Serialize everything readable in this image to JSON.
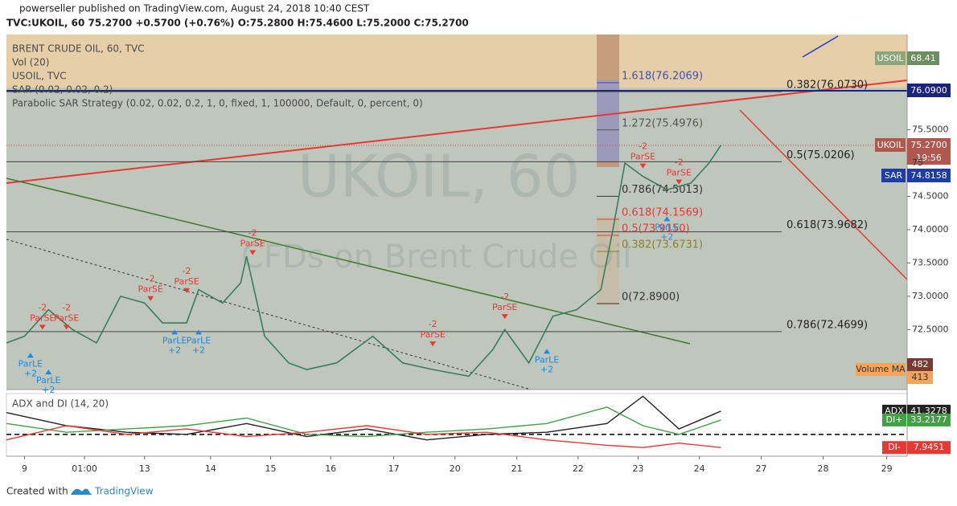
{
  "header": {
    "publisher": "powerseller published on TradingView.com, August 24, 2018 10:40 CEST",
    "ticker": "TVC:UKOIL, 60  75.2700  +0.5700 (+0.76%)  O:75.2800  H:75.4600  L:75.2000  C:75.2700"
  },
  "legend": [
    "BRENT CRUDE OIL, 60, TVC",
    "Vol (20)",
    "USOIL, TVC",
    "SAR (0.02, 0.02, 0.2)",
    "Parabolic SAR Strategy (0.02, 0.02, 0.2, 1, 0, fixed, 1, 100000, Default, 0, percent, 0)"
  ],
  "watermark": [
    "UKOIL, 60",
    "CFDs on Brent Crude Oil"
  ],
  "badges": {
    "usoil_name": "USOIL",
    "usoil": "68.41",
    "level": "76.0900",
    "ukoil_name": "UKOIL",
    "ukoil": "75.2700",
    "timer": "19:56",
    "sar_name": "SAR",
    "sar": "74.8158",
    "vma_name": "Volume MA",
    "vma": "482",
    "vol": "413"
  },
  "chart_data": {
    "type": "line",
    "xlim": [
      0,
      150
    ],
    "xticks": [
      {
        "value": 3,
        "label": "9"
      },
      {
        "value": 13,
        "label": "01:00"
      },
      {
        "value": 23,
        "label": "13"
      },
      {
        "value": 34,
        "label": "14"
      },
      {
        "value": 44,
        "label": "15"
      },
      {
        "value": 54,
        "label": "16"
      },
      {
        "value": 64.5,
        "label": "17"
      },
      {
        "value": 74.7,
        "label": "20"
      },
      {
        "value": 85,
        "label": "21"
      },
      {
        "value": 95.2,
        "label": "22"
      },
      {
        "value": 105.2,
        "label": "23"
      },
      {
        "value": 115.4,
        "label": "24"
      },
      {
        "value": 125.7,
        "label": "27"
      },
      {
        "value": 136,
        "label": "28"
      },
      {
        "value": 146.6,
        "label": "29"
      }
    ],
    "ylim": [
      71.6,
      76.93
    ],
    "yticks": [
      {
        "value": 72.5,
        "label": "72.5000"
      },
      {
        "value": 73,
        "label": "73.0000"
      },
      {
        "value": 73.5,
        "label": "73.5000"
      },
      {
        "value": 74,
        "label": "74.0000"
      },
      {
        "value": 74.5,
        "label": "74.5000"
      },
      {
        "value": 75,
        "label": "75"
      },
      {
        "value": 75.5,
        "label": "75.5000"
      }
    ],
    "series": [
      {
        "name": "UKOIL",
        "color": "#3a7d5a",
        "x": [
          0,
          3,
          7,
          11,
          15,
          19,
          23,
          26,
          30,
          32,
          36,
          39,
          40,
          43,
          47,
          50,
          55,
          61,
          66,
          71,
          77,
          81,
          83,
          87,
          91,
          95,
          99,
          101,
          103,
          106,
          110,
          114,
          117,
          119
        ],
        "values": [
          72.3,
          72.4,
          72.8,
          72.5,
          72.3,
          73.0,
          72.9,
          72.6,
          72.6,
          73.1,
          72.9,
          73.2,
          73.6,
          72.4,
          72.0,
          71.9,
          72.0,
          72.4,
          72.0,
          71.9,
          71.8,
          72.2,
          72.5,
          72.0,
          72.7,
          72.8,
          73.1,
          74.0,
          75.0,
          74.8,
          74.6,
          74.7,
          75.0,
          75.27
        ]
      }
    ],
    "fib_right": [
      {
        "label": "0.382(76.0730)",
        "value": 76.073
      },
      {
        "label": "0.5(75.0206)",
        "value": 75.0206
      },
      {
        "label": "0.618(73.9682)",
        "value": 73.9682
      },
      {
        "label": "0.786(72.4699)",
        "value": 72.4699
      }
    ],
    "fib_left": [
      {
        "label": "1.618(76.2069)",
        "value": 76.2069,
        "color": "#3f51b5"
      },
      {
        "label": "1.272(75.4976)",
        "value": 75.4976,
        "color": "#555555"
      },
      {
        "label": "0.786(74.5013)",
        "value": 74.5013,
        "color": "#333333"
      },
      {
        "label": "0.618(74.1569)",
        "value": 74.1569,
        "color": "#e53935"
      },
      {
        "label": "0.5(73.9150)",
        "value": 73.915,
        "color": "#e53935"
      },
      {
        "label": "0.382(73.6731)",
        "value": 73.6731,
        "color": "#8d7f2a"
      },
      {
        "label": "0(72.8900)",
        "value": 72.89,
        "color": "#333333"
      }
    ],
    "signals": [
      {
        "label": "ParSE",
        "qty": "-2",
        "x": 6,
        "value": 72.5
      },
      {
        "label": "ParSE",
        "qty": "-2",
        "x": 10,
        "value": 72.5
      },
      {
        "label": "ParLE",
        "qty": "+2",
        "x": 4,
        "value": 72.15
      },
      {
        "label": "ParLE",
        "qty": "+2",
        "x": 7,
        "value": 71.9
      },
      {
        "label": "ParSE",
        "qty": "-2",
        "x": 24,
        "value": 72.93
      },
      {
        "label": "ParSE",
        "qty": "-2",
        "x": 30,
        "value": 73.05
      },
      {
        "label": "ParLE",
        "qty": "+2",
        "x": 28,
        "value": 72.5
      },
      {
        "label": "ParLE",
        "qty": "+2",
        "x": 32,
        "value": 72.5
      },
      {
        "label": "ParSE",
        "qty": "-2",
        "x": 41,
        "value": 73.62
      },
      {
        "label": "ParSE",
        "qty": "-2",
        "x": 71,
        "value": 72.25
      },
      {
        "label": "ParSE",
        "qty": "-2",
        "x": 83,
        "value": 72.66
      },
      {
        "label": "ParLE",
        "qty": "+2",
        "x": 90,
        "value": 72.21
      },
      {
        "label": "ParSE",
        "qty": "-2",
        "x": 106,
        "value": 74.92
      },
      {
        "label": "ParSE",
        "qty": "-2",
        "x": 112,
        "value": 74.68
      },
      {
        "label": "ParLE",
        "qty": "+2",
        "x": 110,
        "value": 74.2
      }
    ],
    "indicator": {
      "title": "ADX and DI (14, 20)",
      "ylim": [
        0,
        56
      ],
      "level": 20,
      "x": [
        0,
        10,
        20,
        30,
        40,
        50,
        60,
        70,
        80,
        90,
        100,
        106,
        112,
        119
      ],
      "series": [
        {
          "name": "ADX",
          "color": "#222222",
          "value_label": "41.3278",
          "values": [
            40,
            28,
            22,
            20,
            30,
            18,
            25,
            15,
            20,
            22,
            30,
            55,
            25,
            41.3278
          ]
        },
        {
          "name": "DI+",
          "color": "#43a047",
          "value_label": "33.2177",
          "values": [
            30,
            22,
            25,
            28,
            35,
            20,
            18,
            22,
            25,
            30,
            45,
            28,
            20,
            33.2177
          ]
        },
        {
          "name": "DI-",
          "color": "#e53935",
          "value_label": "7.9451",
          "values": [
            15,
            28,
            20,
            25,
            18,
            22,
            28,
            20,
            22,
            15,
            10,
            8,
            12,
            7.9451
          ]
        }
      ]
    }
  },
  "footer": {
    "created": "Created with",
    "brand": "TradingView"
  }
}
